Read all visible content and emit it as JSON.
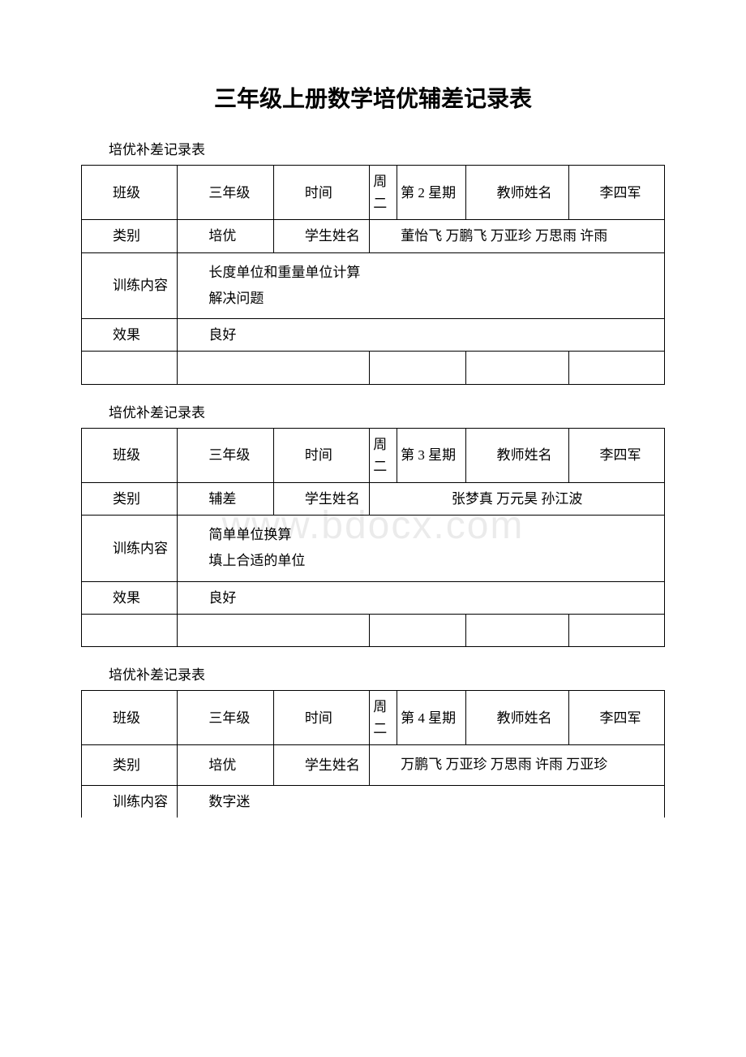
{
  "title": "三年级上册数学培优辅差记录表",
  "subtitle": "培优补差记录表",
  "watermark": "www.bdocx.com",
  "labels": {
    "class": "班级",
    "time": "时间",
    "teacher": "教师姓名",
    "category": "类别",
    "student": "学生姓名",
    "content": "训练内容",
    "effect": "效果",
    "weekPrefix": "周",
    "timeCol": "时间"
  },
  "tables": [
    {
      "class_value": "三年级",
      "day_col": "周二",
      "week": "第 2 星期",
      "teacher_value": "李四军",
      "category_value": "培优",
      "students": "董怡飞 万鹏飞 万亚珍 万思雨 许雨",
      "content_lines": [
        "长度单位和重量单位计算",
        "解决问题"
      ],
      "effect_value": "良好"
    },
    {
      "class_value": "三年级",
      "day_col": "周二",
      "week": "第 3 星期",
      "teacher_value": "李四军",
      "category_value": "辅差",
      "students": "张梦真 万元昊 孙江波",
      "content_lines": [
        "简单单位换算",
        "填上合适的单位"
      ],
      "effect_value": "良好"
    },
    {
      "class_value": "三年级",
      "day_col": "周二",
      "week": "第 4 星期",
      "teacher_value": "李四军",
      "category_value": "培优",
      "students": "万鹏飞 万亚珍 万思雨 许雨 万亚珍",
      "content_lines": [
        "数字迷"
      ],
      "effect_value": ""
    }
  ]
}
